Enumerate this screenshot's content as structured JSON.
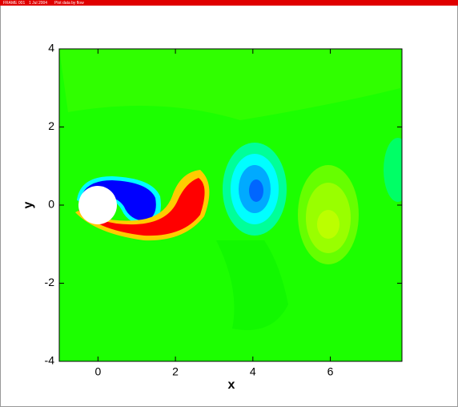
{
  "header": [
    "FRAME 001",
    "1 Jul 2004",
    "Plot data by flow"
  ],
  "chart_data": {
    "type": "contour",
    "xlabel": "x",
    "ylabel": "y",
    "xlim": [
      -1,
      7.85
    ],
    "ylim": [
      -4,
      4
    ],
    "xticks": [
      0,
      2,
      4,
      6
    ],
    "yticks": [
      -4,
      -2,
      0,
      2,
      4
    ]
  }
}
